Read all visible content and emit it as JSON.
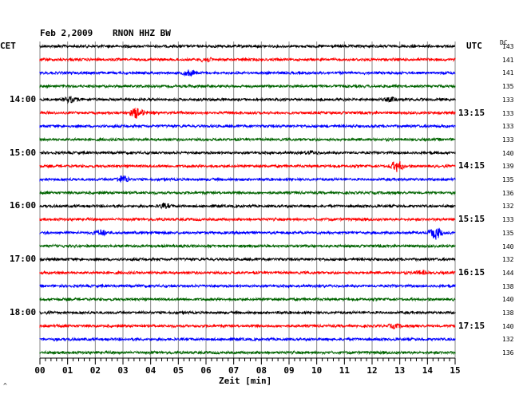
{
  "header": {
    "date": "Feb 2,2009",
    "station": "RNON HHZ BW",
    "left_tz": "CET",
    "right_tz": "UTC",
    "dc_label": "DC"
  },
  "footer": {
    "xlabel": "Zeit [min]",
    "corner_mark": "^"
  },
  "chart_data": {
    "type": "line",
    "title": "Feb 2,2009    RNON HHZ BW",
    "xlabel": "Zeit [min]",
    "xlim": [
      0,
      15
    ],
    "x_ticks": [
      "00",
      "01",
      "02",
      "03",
      "04",
      "05",
      "06",
      "07",
      "08",
      "09",
      "10",
      "11",
      "12",
      "13",
      "14",
      "15"
    ],
    "left_time_labels": [
      {
        "row": 4,
        "text": "14:00"
      },
      {
        "row": 8,
        "text": "15:00"
      },
      {
        "row": 12,
        "text": "16:00"
      },
      {
        "row": 16,
        "text": "17:00"
      },
      {
        "row": 20,
        "text": "18:00"
      }
    ],
    "right_time_labels": [
      {
        "row": 5,
        "text": "13:15"
      },
      {
        "row": 9,
        "text": "14:15"
      },
      {
        "row": 13,
        "text": "15:15"
      },
      {
        "row": 17,
        "text": "16:15"
      },
      {
        "row": 21,
        "text": "17:15"
      }
    ],
    "dc_offsets": [
      "143",
      "141",
      "141",
      "135",
      "133",
      "133",
      "133",
      "133",
      "140",
      "139",
      "135",
      "136",
      "132",
      "133",
      "135",
      "140",
      "132",
      "144",
      "138",
      "140",
      "138",
      "140",
      "132",
      "136"
    ],
    "trace_colors": [
      "#000000",
      "#ff0000",
      "#0000ff",
      "#006400"
    ],
    "events": [
      {
        "row": 1,
        "minute": 6.0,
        "amplitude": 2.5
      },
      {
        "row": 2,
        "minute": 5.4,
        "amplitude": 3.0
      },
      {
        "row": 4,
        "minute": 1.1,
        "amplitude": 3.5
      },
      {
        "row": 4,
        "minute": 12.7,
        "amplitude": 2.2
      },
      {
        "row": 5,
        "minute": 3.5,
        "amplitude": 6.0
      },
      {
        "row": 8,
        "minute": 9.8,
        "amplitude": 2.0
      },
      {
        "row": 9,
        "minute": 12.9,
        "amplitude": 6.5
      },
      {
        "row": 10,
        "minute": 3.0,
        "amplitude": 4.5
      },
      {
        "row": 12,
        "minute": 4.5,
        "amplitude": 2.5
      },
      {
        "row": 14,
        "minute": 2.2,
        "amplitude": 3.5
      },
      {
        "row": 14,
        "minute": 14.3,
        "amplitude": 7.5
      },
      {
        "row": 17,
        "minute": 13.8,
        "amplitude": 2.0
      },
      {
        "row": 21,
        "minute": 12.8,
        "amplitude": 2.0
      }
    ],
    "grid": true,
    "legend": "none"
  }
}
